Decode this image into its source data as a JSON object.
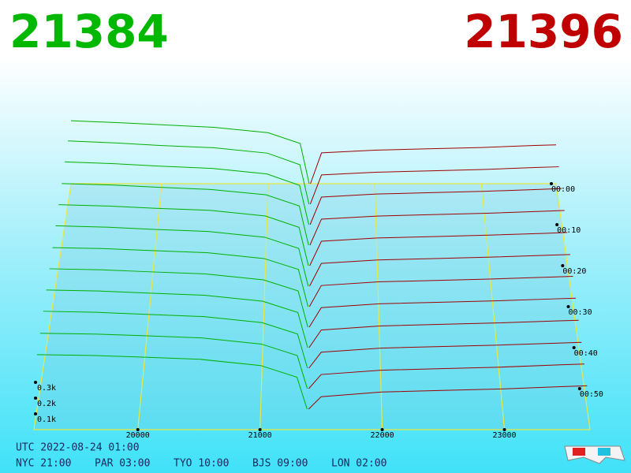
{
  "chart_data": {
    "type": "depth3d",
    "best_bid": 21384,
    "best_ask": 21396,
    "bid_color": "#00b000",
    "ask_color": "#a00000",
    "floor_color": "#e8e840",
    "xlim": [
      19150,
      23700
    ],
    "xticks": [
      20000,
      21000,
      22000,
      23000
    ],
    "time_lim": [
      0,
      60
    ],
    "time_ticks": [
      {
        "value": 0,
        "label": "00:00"
      },
      {
        "value": 10,
        "label": "00:10"
      },
      {
        "value": 20,
        "label": "00:20"
      },
      {
        "value": 30,
        "label": "00:30"
      },
      {
        "value": 40,
        "label": "00:40"
      },
      {
        "value": 50,
        "label": "00:50"
      }
    ],
    "depth_ticks": [
      {
        "value": 100,
        "label": "0.1k"
      },
      {
        "value": 200,
        "label": "0.2k"
      },
      {
        "value": 300,
        "label": "0.3k"
      }
    ],
    "minutes": [
      0,
      5,
      10,
      15,
      20,
      25,
      30,
      35,
      40,
      45,
      50,
      55
    ],
    "bid_prices": [
      19150,
      19600,
      20000,
      20500,
      21000,
      21300,
      21384
    ],
    "ask_prices": [
      21396,
      21500,
      22000,
      22500,
      23000,
      23500,
      23700
    ],
    "bids": [
      [
        470,
        455,
        440,
        420,
        380,
        300,
        0
      ],
      [
        465,
        450,
        432,
        415,
        375,
        290,
        0
      ],
      [
        455,
        442,
        425,
        408,
        368,
        285,
        0
      ],
      [
        440,
        430,
        415,
        398,
        360,
        280,
        0
      ],
      [
        430,
        420,
        405,
        390,
        350,
        270,
        0
      ],
      [
        420,
        410,
        395,
        380,
        340,
        262,
        0
      ],
      [
        405,
        398,
        385,
        370,
        330,
        255,
        0
      ],
      [
        395,
        388,
        375,
        360,
        320,
        245,
        0
      ],
      [
        385,
        378,
        365,
        350,
        310,
        235,
        0
      ],
      [
        375,
        368,
        355,
        340,
        300,
        225,
        0
      ],
      [
        360,
        355,
        345,
        330,
        290,
        215,
        0
      ],
      [
        350,
        345,
        335,
        320,
        280,
        205,
        0
      ]
    ],
    "asks": [
      [
        0,
        230,
        250,
        260,
        270,
        285,
        290
      ],
      [
        0,
        215,
        235,
        245,
        255,
        270,
        275
      ],
      [
        0,
        200,
        222,
        232,
        242,
        256,
        262
      ],
      [
        0,
        186,
        208,
        218,
        228,
        242,
        248
      ],
      [
        0,
        172,
        195,
        205,
        215,
        228,
        234
      ],
      [
        0,
        158,
        182,
        192,
        202,
        215,
        220
      ],
      [
        0,
        145,
        170,
        180,
        190,
        203,
        208
      ],
      [
        0,
        132,
        158,
        168,
        178,
        191,
        196
      ],
      [
        0,
        118,
        145,
        155,
        165,
        178,
        183
      ],
      [
        0,
        105,
        132,
        142,
        152,
        165,
        170
      ],
      [
        0,
        92,
        120,
        130,
        140,
        155,
        160
      ],
      [
        0,
        80,
        110,
        120,
        130,
        145,
        150
      ]
    ]
  },
  "footer": {
    "utc": "UTC 2022-08-24 01:00",
    "clocks": [
      "NYC 21:00",
      "PAR 03:00",
      "TYO 10:00",
      "BJS 09:00",
      "LON 02:00"
    ]
  }
}
